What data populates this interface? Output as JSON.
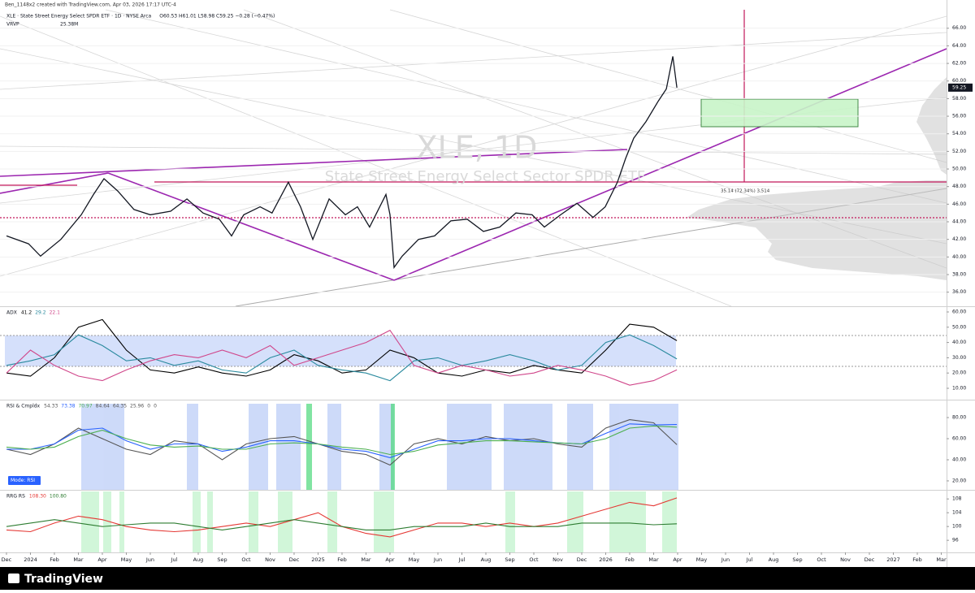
{
  "header": {
    "credit": "Ben_1148x2 created with TradingView.com, Apr 03, 2026 17:17 UTC-4",
    "symbol": "XLE · State Street Energy Select SPDR ETF · 1D · NYSE Arca",
    "ohlc": "O60.53 H61.01 L58.98 C59.25 −0.28 (−0.47%)",
    "vrvp": "VRVP",
    "vrvp_value": "25.38M"
  },
  "watermark": {
    "title": "XLE, 1D",
    "subtitle": "State Street Energy Select Sector SPDR ETF"
  },
  "chart_data": [
    {
      "type": "line",
      "x": [
        0,
        0.92,
        1.42,
        2.27,
        3.12,
        3.63,
        4.07,
        4.64,
        5.32,
        6,
        6.85,
        7.53,
        8.2,
        8.88,
        9.39,
        9.9,
        10.58,
        11.08,
        11.76,
        12.27,
        12.78,
        13.46,
        14.14,
        14.64,
        15.15,
        15.83,
        16,
        16.17,
        16.51,
        17.19,
        17.86,
        18.54,
        19.22,
        19.9,
        20.58,
        21.25,
        21.93,
        22.44,
        23.12,
        23.8,
        24.47,
        24.98,
        25.49,
        25.83,
        26.17,
        26.68,
        27.19,
        27.53,
        27.8,
        27.97
      ],
      "series": [
        {
          "color": "#131722",
          "values": [
            42.4,
            41.5,
            40.1,
            42,
            44.8,
            47.1,
            48.9,
            47.5,
            45.4,
            44.8,
            45.2,
            46.6,
            45,
            44.3,
            42.4,
            44.8,
            45.7,
            45,
            48.5,
            45.7,
            42,
            46.6,
            44.8,
            45.7,
            43.4,
            47.1,
            44.8,
            38.8,
            40.1,
            42,
            42.4,
            44.1,
            44.3,
            42.9,
            43.4,
            45,
            44.8,
            43.4,
            44.8,
            46.1,
            44.5,
            45.7,
            48.5,
            51.2,
            53.5,
            55.4,
            57.7,
            59.1,
            62.8,
            59.25
          ]
        }
      ],
      "xlim": [
        -0.27,
        39.22
      ],
      "xticks": [
        {
          "value": 0,
          "label": "Dec"
        },
        {
          "value": 1,
          "label": "2024"
        },
        {
          "value": 2,
          "label": "Feb"
        },
        {
          "value": 3,
          "label": "Mar"
        },
        {
          "value": 4,
          "label": "Apr"
        },
        {
          "value": 5,
          "label": "May"
        },
        {
          "value": 6,
          "label": "Jun"
        },
        {
          "value": 7,
          "label": "Jul"
        },
        {
          "value": 8,
          "label": "Aug"
        },
        {
          "value": 9,
          "label": "Sep"
        },
        {
          "value": 10,
          "label": "Oct"
        },
        {
          "value": 11,
          "label": "Nov"
        },
        {
          "value": 12,
          "label": "Dec"
        },
        {
          "value": 13,
          "label": "2025"
        },
        {
          "value": 14,
          "label": "Feb"
        },
        {
          "value": 15,
          "label": "Mar"
        },
        {
          "value": 16,
          "label": "Apr"
        },
        {
          "value": 17,
          "label": "May"
        },
        {
          "value": 18,
          "label": "Jun"
        },
        {
          "value": 19,
          "label": "Jul"
        },
        {
          "value": 20,
          "label": "Aug"
        },
        {
          "value": 21,
          "label": "Sep"
        },
        {
          "value": 22,
          "label": "Oct"
        },
        {
          "value": 23,
          "label": "Nov"
        },
        {
          "value": 24,
          "label": "Dec"
        },
        {
          "value": 25,
          "label": "2026"
        },
        {
          "value": 26,
          "label": "Feb"
        },
        {
          "value": 27,
          "label": "Mar"
        },
        {
          "value": 28,
          "label": "Apr"
        },
        {
          "value": 29,
          "label": "May"
        },
        {
          "value": 30,
          "label": "Jun"
        },
        {
          "value": 31,
          "label": "Jul"
        },
        {
          "value": 32,
          "label": "Aug"
        },
        {
          "value": 33,
          "label": "Sep"
        },
        {
          "value": 34,
          "label": "Oct"
        },
        {
          "value": 35,
          "label": "Nov"
        },
        {
          "value": 36,
          "label": "Dec"
        },
        {
          "value": 37,
          "label": "2027"
        },
        {
          "value": 38,
          "label": "Feb"
        },
        {
          "value": 39,
          "label": "Mar"
        }
      ],
      "ylim": [
        34.4,
        68.1
      ],
      "yticks": [
        {
          "value": 36,
          "label": "36.00"
        },
        {
          "value": 38,
          "label": "38.00"
        },
        {
          "value": 40,
          "label": "40.00"
        },
        {
          "value": 42,
          "label": "42.00"
        },
        {
          "value": 44,
          "label": "44.00"
        },
        {
          "value": 46,
          "label": "46.00"
        },
        {
          "value": 48,
          "label": "48.00"
        },
        {
          "value": 50,
          "label": "50.00"
        },
        {
          "value": 52,
          "label": "52.00"
        },
        {
          "value": 54,
          "label": "54.00"
        },
        {
          "value": 56,
          "label": "56.00"
        },
        {
          "value": 58,
          "label": "58.00"
        },
        {
          "value": 60,
          "label": "60.00"
        },
        {
          "value": 62,
          "label": "62.00"
        },
        {
          "value": 64,
          "label": "64.00"
        },
        {
          "value": 66,
          "label": "66.00"
        }
      ],
      "last_value": 59.25,
      "annotation": "35.14 (72.34%) 3,514",
      "grid": true
    },
    {
      "type": "line",
      "label": "ADX",
      "legend_values": [
        41.2,
        29.2,
        22.1
      ],
      "x": [
        0,
        1,
        2,
        3,
        4,
        5,
        6,
        7,
        8,
        9,
        10,
        11,
        12,
        13,
        14,
        15,
        16,
        17,
        18,
        19,
        20,
        21,
        22,
        23,
        24,
        25,
        26,
        27,
        27.97
      ],
      "series": [
        {
          "color": "#000000",
          "values": [
            20,
            18,
            30,
            50,
            55,
            35,
            22,
            20,
            24,
            20,
            18,
            22,
            32,
            28,
            20,
            22,
            35,
            30,
            20,
            18,
            22,
            20,
            25,
            22,
            20,
            35,
            52,
            50,
            41.2
          ]
        },
        {
          "color": "#2a8a9e",
          "values": [
            25,
            28,
            32,
            45,
            38,
            28,
            30,
            25,
            28,
            22,
            20,
            30,
            35,
            25,
            22,
            20,
            15,
            28,
            30,
            25,
            28,
            32,
            28,
            22,
            25,
            40,
            45,
            38,
            29.2
          ]
        },
        {
          "color": "#d0468a",
          "values": [
            20,
            35,
            25,
            18,
            15,
            22,
            28,
            32,
            30,
            35,
            30,
            38,
            25,
            30,
            35,
            40,
            48,
            25,
            20,
            25,
            22,
            18,
            20,
            25,
            22,
            18,
            12,
            15,
            22.1
          ]
        }
      ],
      "xlim": [
        -0.27,
        39.22
      ],
      "ylim": [
        2.55,
        63.2
      ],
      "yticks": [
        {
          "value": 10,
          "label": "10.00"
        },
        {
          "value": 20,
          "label": "20.00"
        },
        {
          "value": 30,
          "label": "30.00"
        },
        {
          "value": 40,
          "label": "40.00"
        },
        {
          "value": 50,
          "label": "50.00"
        },
        {
          "value": 60,
          "label": "60.00"
        }
      ],
      "grid": false
    },
    {
      "type": "line",
      "label": "RSI & Cmpldx",
      "legend_values": [
        54.33,
        73.38,
        70.97,
        84.64,
        64.35,
        25.96,
        0,
        0
      ],
      "mode_label": "Mode: RSI",
      "x": [
        0,
        1,
        2,
        3,
        4,
        5,
        6,
        7,
        8,
        9,
        10,
        11,
        12,
        13,
        14,
        15,
        16,
        17,
        18,
        19,
        20,
        21,
        22,
        23,
        24,
        25,
        26,
        27,
        27.97
      ],
      "series": [
        {
          "color": "#555555",
          "values": [
            50,
            45,
            55,
            70,
            60,
            50,
            45,
            58,
            55,
            40,
            55,
            60,
            62,
            55,
            48,
            45,
            35,
            55,
            60,
            55,
            62,
            58,
            60,
            55,
            52,
            70,
            78,
            75,
            54.33
          ]
        },
        {
          "color": "#2962ff",
          "values": [
            50,
            50,
            55,
            68,
            70,
            58,
            50,
            55,
            55,
            48,
            52,
            58,
            58,
            55,
            50,
            48,
            42,
            50,
            58,
            58,
            60,
            60,
            58,
            56,
            55,
            65,
            74,
            73,
            73.38
          ]
        },
        {
          "color": "#4caf50",
          "values": [
            52,
            50,
            52,
            62,
            68,
            60,
            54,
            52,
            53,
            50,
            50,
            55,
            56,
            55,
            52,
            50,
            45,
            48,
            54,
            56,
            58,
            58,
            57,
            56,
            55,
            60,
            70,
            72,
            70.97
          ]
        }
      ],
      "xlim": [
        -0.27,
        39.22
      ],
      "ylim": [
        11.5,
        96.2
      ],
      "yticks": [
        {
          "value": 20,
          "label": "20.00"
        },
        {
          "value": 40,
          "label": "40.00"
        },
        {
          "value": 60,
          "label": "60.00"
        },
        {
          "value": 80,
          "label": "80.00"
        }
      ],
      "grid": false
    },
    {
      "type": "line",
      "label": "RRG RS",
      "legend_values": [
        {
          "value": 108.3,
          "label": "108.30"
        },
        {
          "value": 100.8,
          "label": "100.80"
        }
      ],
      "x": [
        0,
        1,
        2,
        3,
        4,
        5,
        6,
        7,
        8,
        9,
        10,
        11,
        12,
        13,
        14,
        15,
        16,
        17,
        18,
        19,
        20,
        21,
        22,
        23,
        24,
        25,
        26,
        27,
        27.97
      ],
      "series": [
        {
          "color": "#e53935",
          "values": [
            99,
            98.5,
            101,
            103,
            102,
            100,
            99,
            98.5,
            99,
            100,
            101,
            100,
            102,
            104,
            100,
            98,
            97,
            99,
            101,
            101,
            100,
            101,
            100,
            101,
            103,
            105,
            107,
            106,
            108.3
          ]
        },
        {
          "color": "#2e7d32",
          "values": [
            100,
            101,
            102,
            101,
            100,
            100.5,
            101,
            101,
            100,
            99,
            100,
            101,
            102,
            101,
            100,
            99,
            99,
            100,
            100,
            100,
            101,
            100,
            100,
            100,
            101,
            101,
            101,
            100.5,
            100.8
          ]
        }
      ],
      "xlim": [
        -0.27,
        39.22
      ],
      "ylim": [
        92.5,
        110.4
      ],
      "yticks": [
        96,
        100,
        104,
        108
      ],
      "grid": false
    }
  ],
  "footer": {
    "brand": "TradingView"
  }
}
